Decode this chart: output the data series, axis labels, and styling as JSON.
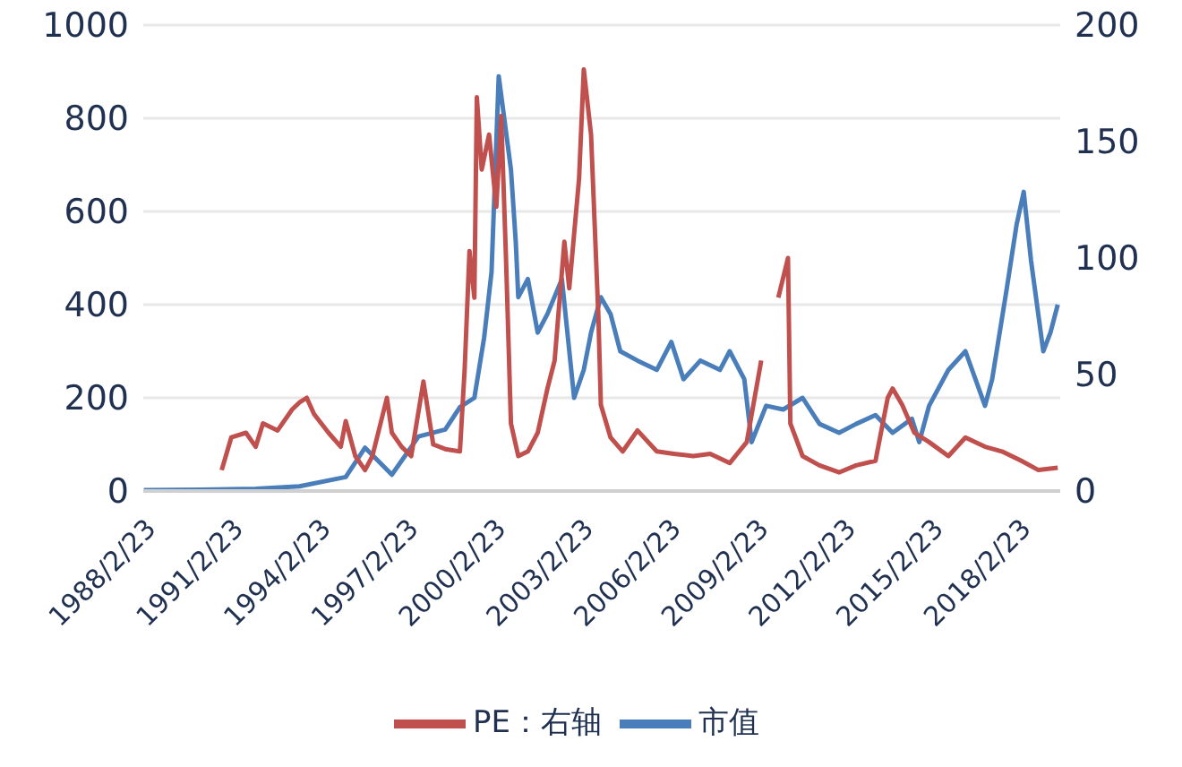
{
  "chart_data": {
    "type": "line",
    "legend": "bottom",
    "grid": "y",
    "marker": "none",
    "xlim": [
      "1988-02-23",
      "2019-08"
    ],
    "xticks": [
      {
        "value": "1988-02-23",
        "label": "1988/2/23"
      },
      {
        "value": "1991-02-23",
        "label": "1991/2/23"
      },
      {
        "value": "1994-02-23",
        "label": "1994/2/23"
      },
      {
        "value": "1997-02-23",
        "label": "1997/2/23"
      },
      {
        "value": "2000-02-23",
        "label": "2000/2/23"
      },
      {
        "value": "2003-02-23",
        "label": "2003/2/23"
      },
      {
        "value": "2006-02-23",
        "label": "2006/2/23"
      },
      {
        "value": "2009-02-23",
        "label": "2009/2/23"
      },
      {
        "value": "2012-02-23",
        "label": "2012/2/23"
      },
      {
        "value": "2015-02-23",
        "label": "2015/2/23"
      },
      {
        "value": "2018-02-23",
        "label": "2018/2/23"
      }
    ],
    "ylim": [
      0,
      1000
    ],
    "yticks": [
      0,
      200,
      400,
      600,
      800,
      1000
    ],
    "y2lim": [
      0,
      200
    ],
    "y2ticks": [
      0,
      50,
      100,
      150,
      200
    ],
    "series": [
      {
        "name": "市值",
        "color": "#4a7ebb",
        "x": [
          "1988-03",
          "1990-02",
          "1992-01",
          "1993-07",
          "1995-02",
          "1995-10",
          "1996-09",
          "1997-08",
          "1998-07",
          "1999-01",
          "1999-07",
          "1999-11",
          "2000-02",
          "2000-05",
          "2000-10",
          "2000-12",
          "2001-01",
          "2001-05",
          "2001-09",
          "2002-01",
          "2002-07",
          "2002-12",
          "2003-04",
          "2003-07",
          "2003-11",
          "2004-03",
          "2004-07",
          "2005-02",
          "2005-10",
          "2006-04",
          "2006-09",
          "2007-04",
          "2007-12",
          "2008-04",
          "2008-10",
          "2009-01",
          "2009-07",
          "2010-02",
          "2010-10",
          "2011-05",
          "2012-01",
          "2012-08",
          "2013-04",
          "2013-11",
          "2014-07",
          "2014-10",
          "2015-02",
          "2015-10",
          "2016-05",
          "2017-01",
          "2017-04",
          "2017-10",
          "2018-02",
          "2018-05",
          "2018-08",
          "2019-01",
          "2019-04",
          "2019-07"
        ],
        "values": [
          2,
          3,
          5,
          10,
          30,
          93,
          35,
          117,
          132,
          180,
          200,
          330,
          470,
          890,
          690,
          533,
          416,
          455,
          340,
          380,
          455,
          200,
          260,
          340,
          416,
          380,
          300,
          280,
          260,
          320,
          240,
          280,
          260,
          300,
          240,
          105,
          183,
          175,
          200,
          144,
          125,
          144,
          163,
          125,
          155,
          105,
          183,
          260,
          300,
          183,
          240,
          435,
          572,
          642,
          494,
          300,
          340,
          400
        ]
      },
      {
        "name": "PE：右轴",
        "color": "#c0504d",
        "axis": "y2",
        "x": [
          "1990-11",
          "1991-03",
          "1991-09",
          "1992-01",
          "1992-04",
          "1992-10",
          "1993-04",
          "1993-07",
          "1993-10",
          "1994-01",
          "1994-07",
          "1994-12",
          "1995-02",
          "1995-06",
          "1995-10",
          "1996-01",
          "1996-07",
          "1996-09",
          "1997-01",
          "1997-05",
          "1997-10",
          "1998-02",
          "1998-07",
          "1999-01",
          "1999-03",
          "1999-05",
          "1999-07",
          "1999-08",
          "1999-10",
          "2000-01",
          "2000-04",
          "2000-06",
          "2000-08",
          "2000-10",
          "2001-01",
          "2001-05",
          "2001-09",
          "2002-01",
          "2002-04",
          "2002-08",
          "2002-10",
          "2003-02",
          "2003-04",
          "2003-07",
          "2003-10",
          "2003-11",
          "2004-03",
          "2004-08",
          "2005-02",
          "2005-10",
          "2006-05",
          "2007-01",
          "2007-08",
          "2008-04",
          "2008-11",
          "2009-05",
          "2009-08",
          "2009-12",
          "2010-04",
          "2010-05",
          "2010-10",
          "2011-05",
          "2012-01",
          "2012-08",
          "2013-04",
          "2013-09",
          "2013-11",
          "2014-03",
          "2014-08",
          "2015-02",
          "2015-10",
          "2016-05",
          "2017-01",
          "2017-08",
          "2018-04",
          "2018-11",
          "2019-07"
        ],
        "values": [
          9,
          23,
          25,
          19,
          29,
          26,
          35,
          38,
          40,
          33,
          25,
          19,
          30,
          15,
          9,
          15,
          40,
          25,
          19,
          15,
          47,
          20,
          18,
          17,
          52,
          103,
          83,
          169,
          138,
          153,
          122,
          161,
          99,
          29,
          15,
          17,
          25,
          44,
          56,
          107,
          87,
          134,
          181,
          153,
          75,
          37,
          23,
          17,
          26,
          17,
          16,
          15,
          16,
          12,
          21,
          56,
          null,
          83,
          100,
          29,
          15,
          11,
          8,
          11,
          13,
          40,
          44,
          37,
          25,
          21,
          15,
          23,
          19,
          17,
          13,
          9,
          10
        ]
      }
    ]
  }
}
